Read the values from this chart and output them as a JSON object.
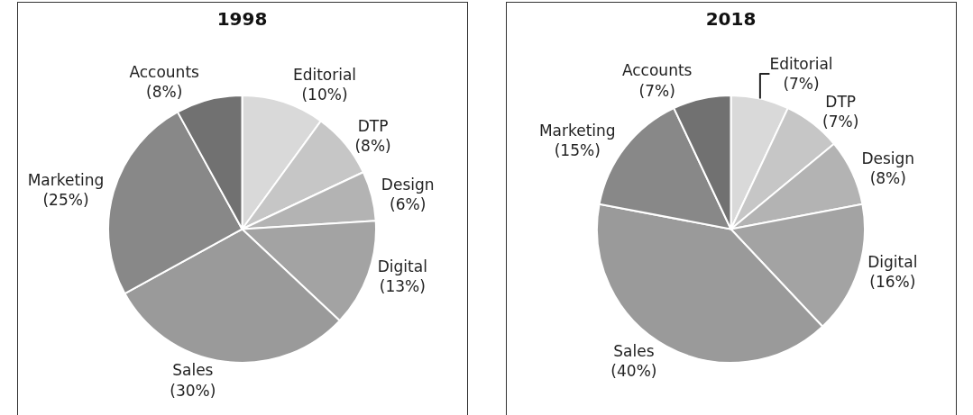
{
  "chart_data": [
    {
      "type": "pie",
      "title": "1998",
      "categories": [
        "Editorial",
        "DTP",
        "Design",
        "Digital",
        "Sales",
        "Marketing",
        "Accounts"
      ],
      "values": [
        10,
        8,
        6,
        13,
        30,
        25,
        8
      ],
      "value_labels": [
        "(10%)",
        "(8%)",
        "(6%)",
        "(13%)",
        "(30%)",
        "(25%)",
        "(8%)"
      ],
      "colors": [
        "#d9d9d9",
        "#c6c6c6",
        "#b3b3b3",
        "#a3a3a3",
        "#9a9a9a",
        "#888888",
        "#717171"
      ]
    },
    {
      "type": "pie",
      "title": "2018",
      "categories": [
        "Editorial",
        "DTP",
        "Design",
        "Digital",
        "Sales",
        "Marketing",
        "Accounts"
      ],
      "values": [
        7,
        7,
        8,
        16,
        40,
        15,
        7
      ],
      "value_labels": [
        "(7%)",
        "(7%)",
        "(8%)",
        "(16%)",
        "(40%)",
        "(15%)",
        "(7%)"
      ],
      "colors": [
        "#d9d9d9",
        "#c6c6c6",
        "#b3b3b3",
        "#a3a3a3",
        "#9a9a9a",
        "#888888",
        "#717171"
      ]
    }
  ]
}
